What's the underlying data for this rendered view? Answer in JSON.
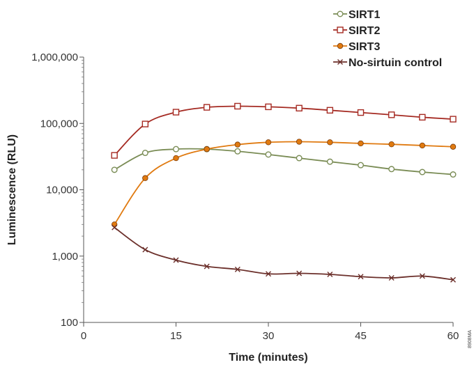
{
  "chart_data": {
    "type": "line",
    "xlabel": "Time (minutes)",
    "ylabel": "Luminescence (RLU)",
    "xlim": [
      0,
      60
    ],
    "ylim": [
      100,
      1000000
    ],
    "yscale": "log",
    "x_ticks": [
      0,
      15,
      30,
      45,
      60
    ],
    "x_tick_labels": [
      "0",
      "15",
      "30",
      "45",
      "60"
    ],
    "y_ticks": [
      100,
      1000,
      10000,
      100000,
      1000000
    ],
    "y_tick_labels": [
      "100",
      "1,000",
      "10,000",
      "100,000",
      "1,000,000"
    ],
    "grid": false,
    "legend_position": "top-right",
    "x": [
      5,
      10,
      15,
      20,
      25,
      30,
      35,
      40,
      45,
      50,
      55,
      60
    ],
    "series": [
      {
        "name": "SIRT1",
        "color": "#7a8c55",
        "marker": "circle-open",
        "values": [
          20000,
          36000,
          41000,
          41000,
          38000,
          34000,
          30000,
          26500,
          23500,
          20500,
          18500,
          17000
        ]
      },
      {
        "name": "SIRT2",
        "color": "#a52a22",
        "marker": "square-open",
        "values": [
          33000,
          98000,
          148000,
          175000,
          182000,
          178000,
          170000,
          158000,
          146000,
          135000,
          124000,
          116000
        ]
      },
      {
        "name": "SIRT3",
        "color": "#e07a10",
        "marker": "circle-filled",
        "values": [
          3000,
          15000,
          30000,
          41000,
          48000,
          52000,
          53000,
          52000,
          50000,
          48500,
          46500,
          44500
        ]
      },
      {
        "name": "No-sirtuin control",
        "color": "#6b2f2a",
        "marker": "x",
        "values": [
          2700,
          1250,
          870,
          700,
          630,
          540,
          550,
          530,
          490,
          470,
          500,
          440
        ]
      }
    ],
    "code_label": "8908MA"
  }
}
